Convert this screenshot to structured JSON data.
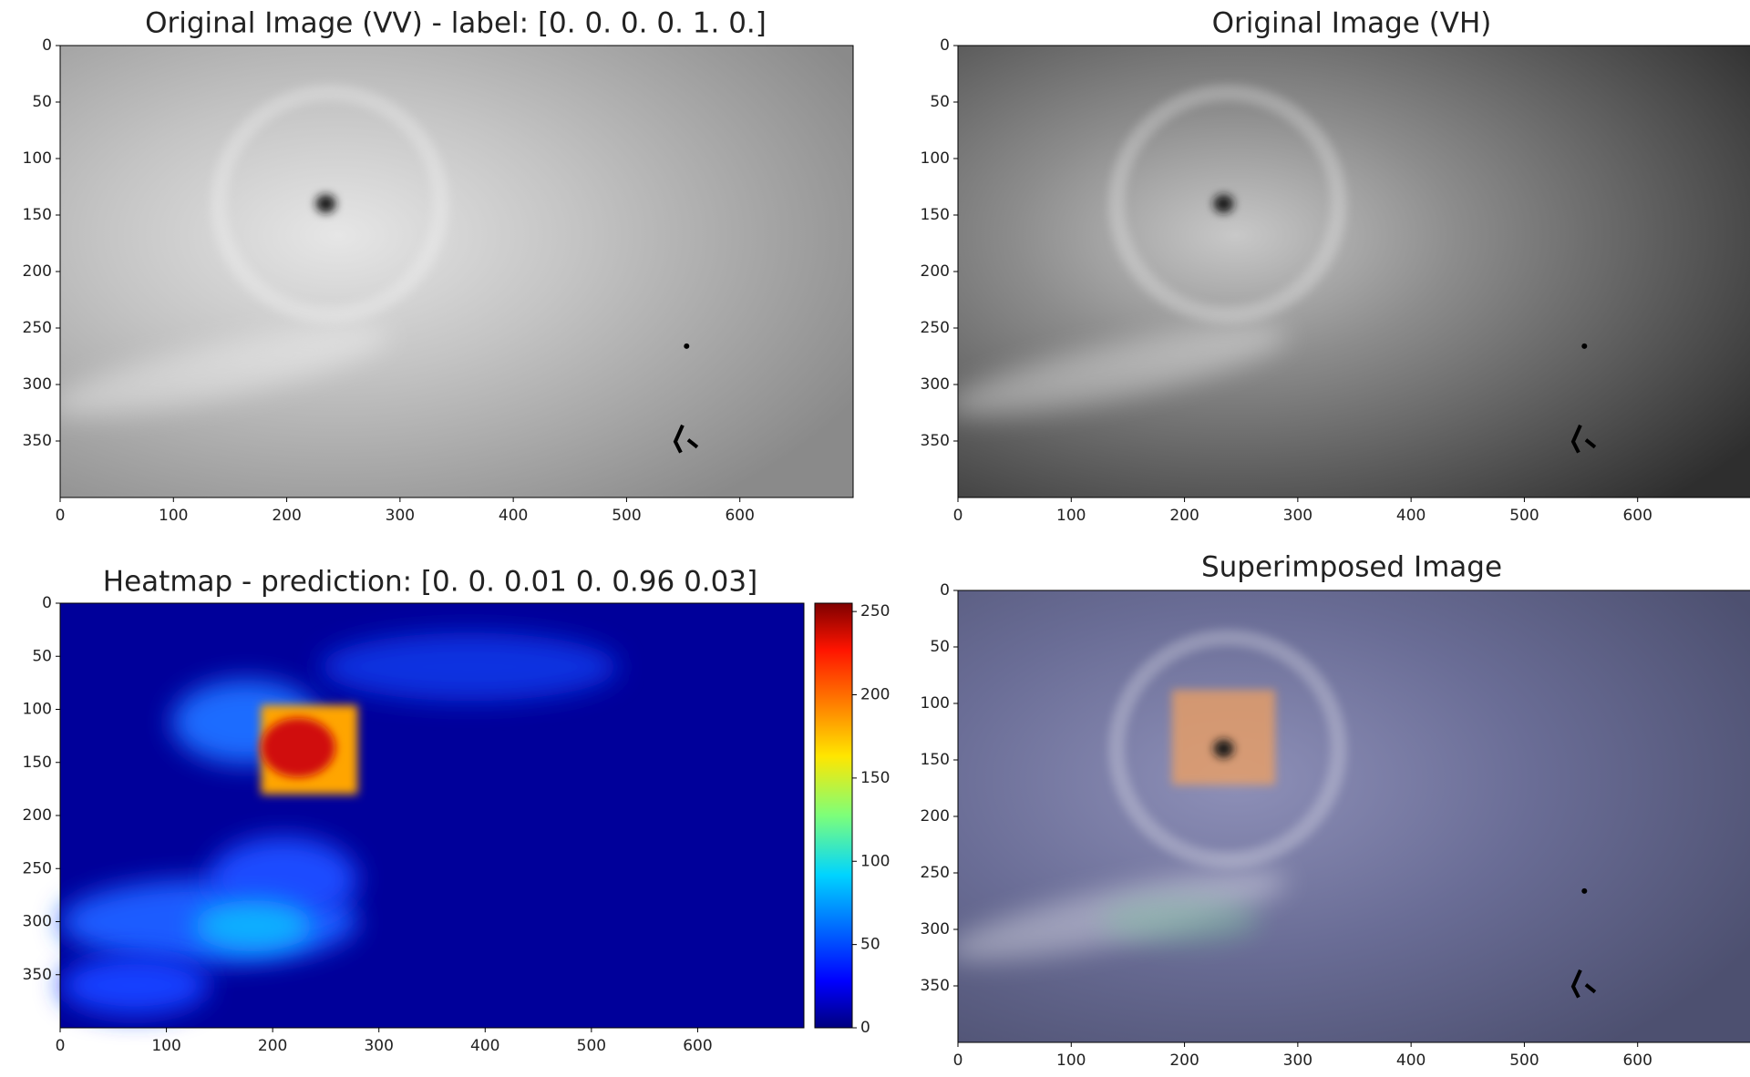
{
  "chart_data": [
    {
      "type": "image",
      "title": "Original Image (VV) - label: [0. 0. 0. 0. 1. 0.]",
      "xlim": [
        0,
        700
      ],
      "ylim": [
        400,
        0
      ],
      "xticks": [
        0,
        100,
        200,
        300,
        400,
        500,
        600
      ],
      "yticks": [
        0,
        50,
        100,
        150,
        200,
        250,
        300,
        350
      ]
    },
    {
      "type": "image",
      "title": "Original Image (VH)",
      "xlim": [
        0,
        700
      ],
      "ylim": [
        400,
        0
      ],
      "xticks": [
        0,
        100,
        200,
        300,
        400,
        500,
        600
      ],
      "yticks": [
        0,
        50,
        100,
        150,
        200,
        250,
        300,
        350
      ]
    },
    {
      "type": "heatmap",
      "title": "Heatmap - prediction: [0.   0.   0.01 0.   0.96 0.03]",
      "xlim": [
        0,
        700
      ],
      "ylim": [
        400,
        0
      ],
      "xticks": [
        0,
        100,
        200,
        300,
        400,
        500,
        600
      ],
      "yticks": [
        0,
        50,
        100,
        150,
        200,
        250,
        300,
        350
      ],
      "clim": [
        0,
        255
      ],
      "cticks": [
        0,
        50,
        100,
        150,
        200,
        250
      ]
    },
    {
      "type": "overlay",
      "title": "Superimposed Image",
      "xlim": [
        0,
        700
      ],
      "ylim": [
        400,
        0
      ],
      "xticks": [
        0,
        100,
        200,
        300,
        400,
        500,
        600
      ],
      "yticks": [
        0,
        50,
        100,
        150,
        200,
        250,
        300,
        350
      ]
    }
  ]
}
